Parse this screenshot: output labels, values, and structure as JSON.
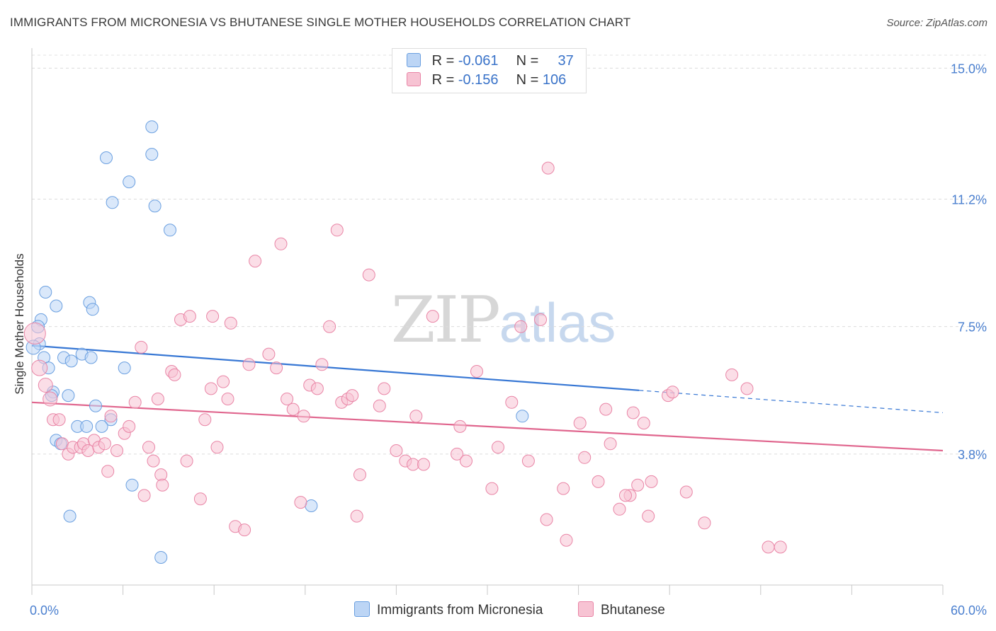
{
  "header": {
    "title": "IMMIGRANTS FROM MICRONESIA VS BHUTANESE SINGLE MOTHER HOUSEHOLDS CORRELATION CHART",
    "source": "Source: ZipAtlas.com"
  },
  "watermark": {
    "zip": "ZIP",
    "atlas": "atlas"
  },
  "legend": {
    "rows": [
      {
        "r_label": "R =",
        "r_value": "-0.061",
        "n_label": "N =",
        "n_value": "37",
        "color": "#a9c8f0"
      },
      {
        "r_label": "R =",
        "r_value": "-0.156",
        "n_label": "N =",
        "n_value": "106",
        "color": "#f5b7ca"
      }
    ]
  },
  "bottom_legend": [
    {
      "label": "Immigrants from Micronesia",
      "color": "#a9c8f0"
    },
    {
      "label": "Bhutanese",
      "color": "#f5b7ca"
    }
  ],
  "chart_data": {
    "type": "scatter",
    "ylabel": "Single Mother Households",
    "xlabel": "",
    "xlim": [
      0,
      60
    ],
    "ylim": [
      0,
      15.5
    ],
    "x_tick_labels": [
      "0.0%",
      "60.0%"
    ],
    "y_ticks": [
      3.8,
      7.5,
      11.2,
      15.0
    ],
    "y_tick_labels": [
      "3.8%",
      "7.5%",
      "11.2%",
      "15.0%"
    ],
    "grid": "dashed horizontal",
    "legend_position": "top-center",
    "series": [
      {
        "name": "Immigrants from Micronesia",
        "color": "#6a9fe0",
        "fill": "#bcd5f5",
        "trend": {
          "x0": 0,
          "y0": 6.95,
          "x1": 40,
          "y1": 5.65,
          "dashed_to_x": 60,
          "dashed_to_y": 5.0
        },
        "points": [
          [
            7.9,
            13.3
          ],
          [
            7.9,
            12.5
          ],
          [
            4.9,
            12.4
          ],
          [
            6.4,
            11.7
          ],
          [
            5.3,
            11.1
          ],
          [
            8.1,
            11.0
          ],
          [
            9.1,
            10.3
          ],
          [
            0.9,
            8.5
          ],
          [
            1.6,
            8.1
          ],
          [
            3.8,
            8.2
          ],
          [
            4.0,
            8.0
          ],
          [
            0.6,
            7.7
          ],
          [
            0.4,
            7.5
          ],
          [
            0.5,
            7.0
          ],
          [
            0.1,
            6.9
          ],
          [
            0.8,
            6.6
          ],
          [
            2.1,
            6.6
          ],
          [
            2.6,
            6.5
          ],
          [
            3.3,
            6.7
          ],
          [
            3.9,
            6.6
          ],
          [
            1.1,
            6.3
          ],
          [
            6.1,
            6.3
          ],
          [
            1.4,
            5.6
          ],
          [
            1.3,
            5.5
          ],
          [
            2.4,
            5.5
          ],
          [
            4.2,
            5.2
          ],
          [
            5.2,
            4.8
          ],
          [
            3.0,
            4.6
          ],
          [
            3.6,
            4.6
          ],
          [
            4.6,
            4.6
          ],
          [
            1.6,
            4.2
          ],
          [
            1.9,
            4.1
          ],
          [
            6.6,
            2.9
          ],
          [
            2.5,
            2.0
          ],
          [
            18.4,
            2.3
          ],
          [
            8.5,
            0.8
          ],
          [
            32.3,
            4.9
          ]
        ]
      },
      {
        "name": "Bhutanese",
        "color": "#e985a6",
        "fill": "#f7c3d3",
        "trend": {
          "x0": 0,
          "y0": 5.3,
          "x1": 60,
          "y1": 3.9
        },
        "points": [
          [
            0.2,
            7.3
          ],
          [
            0.5,
            6.3
          ],
          [
            0.9,
            5.8
          ],
          [
            1.2,
            5.4
          ],
          [
            1.4,
            4.8
          ],
          [
            1.8,
            4.8
          ],
          [
            2.0,
            4.1
          ],
          [
            2.4,
            3.8
          ],
          [
            2.7,
            4.0
          ],
          [
            3.2,
            4.0
          ],
          [
            3.4,
            4.1
          ],
          [
            3.7,
            3.9
          ],
          [
            4.1,
            4.2
          ],
          [
            4.4,
            4.0
          ],
          [
            4.8,
            4.1
          ],
          [
            5.0,
            3.3
          ],
          [
            5.2,
            4.9
          ],
          [
            5.6,
            3.9
          ],
          [
            6.1,
            4.4
          ],
          [
            6.4,
            4.6
          ],
          [
            6.8,
            5.3
          ],
          [
            7.2,
            6.9
          ],
          [
            7.4,
            2.6
          ],
          [
            7.7,
            4.0
          ],
          [
            8.0,
            3.6
          ],
          [
            8.3,
            5.4
          ],
          [
            8.5,
            3.2
          ],
          [
            8.6,
            2.9
          ],
          [
            9.2,
            6.2
          ],
          [
            9.4,
            6.1
          ],
          [
            9.8,
            7.7
          ],
          [
            10.4,
            7.8
          ],
          [
            10.2,
            3.6
          ],
          [
            11.1,
            2.5
          ],
          [
            11.4,
            4.8
          ],
          [
            11.8,
            5.7
          ],
          [
            11.9,
            7.8
          ],
          [
            12.2,
            4.0
          ],
          [
            12.6,
            5.9
          ],
          [
            12.9,
            5.4
          ],
          [
            13.1,
            7.6
          ],
          [
            13.4,
            1.7
          ],
          [
            14.0,
            1.6
          ],
          [
            14.3,
            6.4
          ],
          [
            14.7,
            9.4
          ],
          [
            15.6,
            6.7
          ],
          [
            16.1,
            6.3
          ],
          [
            16.4,
            9.9
          ],
          [
            16.8,
            5.4
          ],
          [
            17.2,
            5.1
          ],
          [
            17.7,
            2.4
          ],
          [
            17.9,
            4.9
          ],
          [
            18.3,
            5.8
          ],
          [
            18.8,
            5.7
          ],
          [
            19.1,
            6.4
          ],
          [
            19.6,
            7.5
          ],
          [
            20.1,
            10.3
          ],
          [
            20.4,
            5.3
          ],
          [
            20.8,
            5.4
          ],
          [
            21.1,
            5.5
          ],
          [
            21.6,
            3.2
          ],
          [
            21.4,
            2.0
          ],
          [
            22.2,
            9.0
          ],
          [
            22.9,
            5.2
          ],
          [
            23.2,
            5.7
          ],
          [
            24.0,
            3.9
          ],
          [
            24.6,
            3.6
          ],
          [
            25.1,
            3.5
          ],
          [
            25.3,
            4.9
          ],
          [
            25.8,
            3.5
          ],
          [
            26.4,
            7.8
          ],
          [
            28.0,
            3.8
          ],
          [
            28.2,
            4.6
          ],
          [
            28.6,
            3.6
          ],
          [
            29.3,
            6.2
          ],
          [
            30.3,
            2.8
          ],
          [
            30.7,
            4.0
          ],
          [
            31.6,
            5.3
          ],
          [
            32.2,
            7.5
          ],
          [
            32.7,
            3.6
          ],
          [
            33.5,
            7.7
          ],
          [
            33.9,
            1.9
          ],
          [
            34.0,
            12.1
          ],
          [
            35.0,
            2.8
          ],
          [
            35.2,
            1.3
          ],
          [
            36.1,
            4.7
          ],
          [
            36.4,
            3.7
          ],
          [
            37.3,
            3.0
          ],
          [
            37.8,
            5.1
          ],
          [
            38.1,
            4.1
          ],
          [
            38.7,
            2.2
          ],
          [
            39.4,
            2.6
          ],
          [
            39.9,
            2.9
          ],
          [
            40.3,
            4.7
          ],
          [
            40.6,
            2.0
          ],
          [
            39.6,
            5.0
          ],
          [
            41.9,
            5.5
          ],
          [
            40.8,
            3.0
          ],
          [
            42.2,
            5.6
          ],
          [
            43.1,
            2.7
          ],
          [
            44.3,
            1.8
          ],
          [
            46.1,
            6.1
          ],
          [
            47.1,
            5.7
          ],
          [
            48.5,
            1.1
          ],
          [
            49.3,
            1.1
          ],
          [
            39.1,
            2.6
          ]
        ]
      }
    ]
  }
}
